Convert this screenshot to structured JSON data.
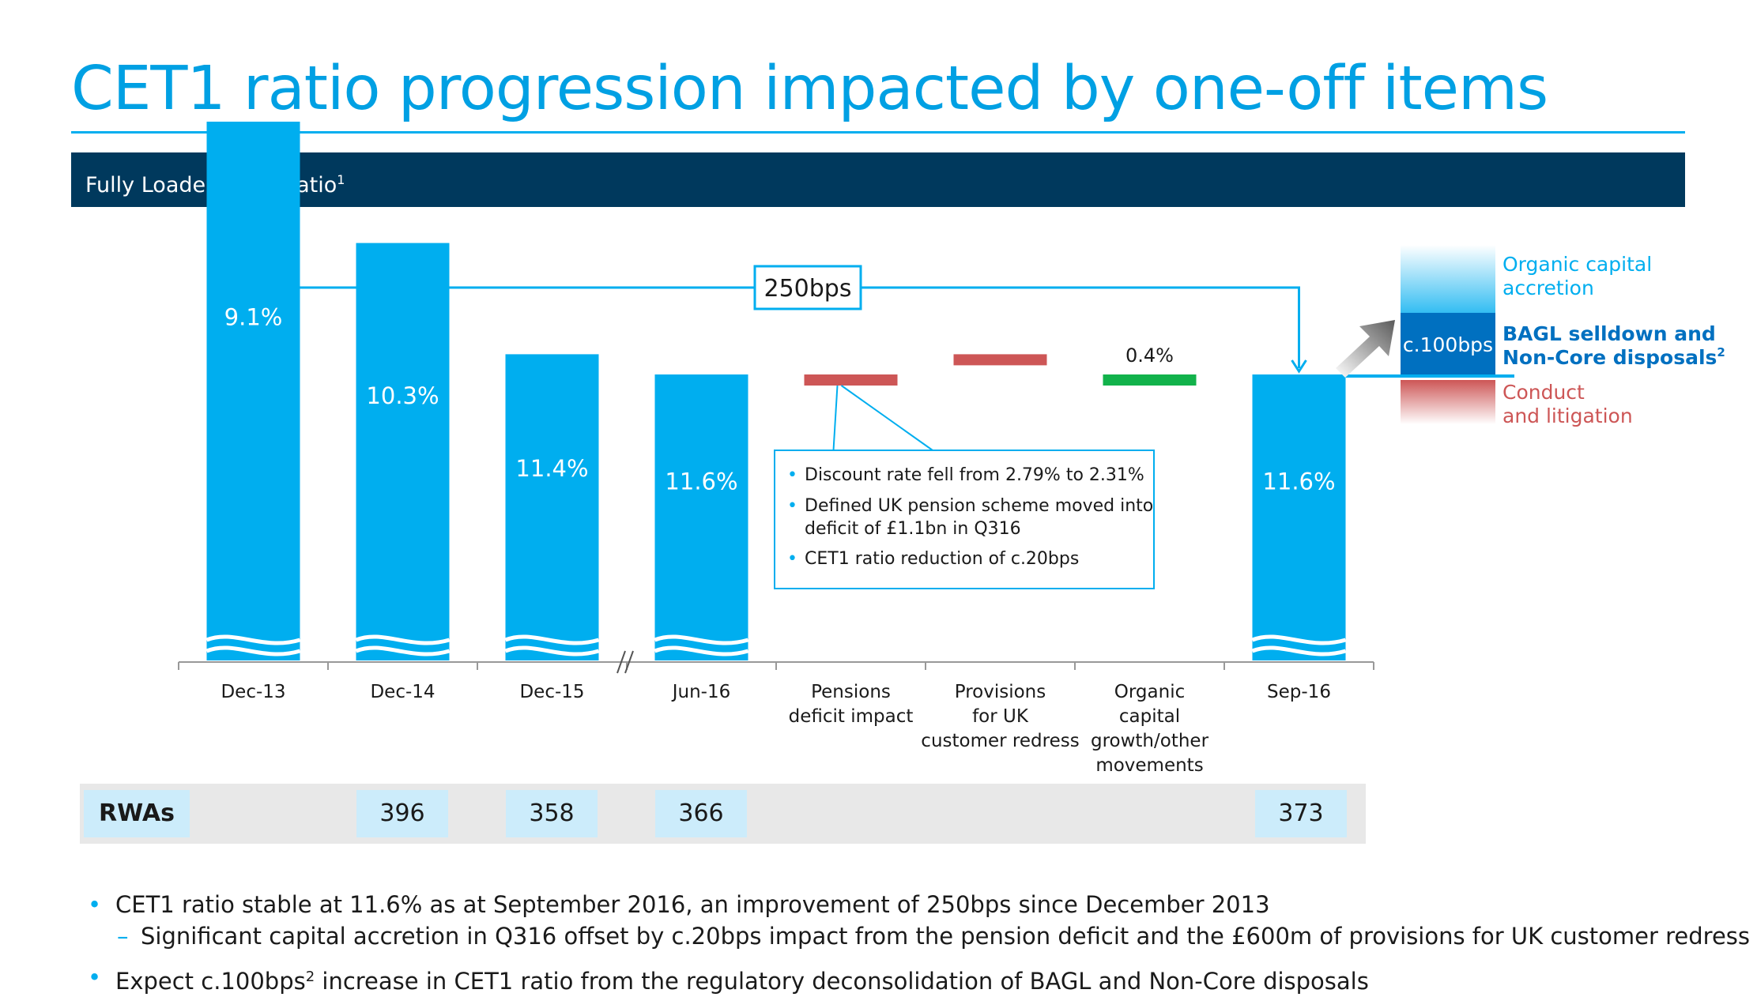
{
  "title": "CET1 ratio progression impacted by one-off items",
  "section_header": {
    "label": "Fully Loaded CET1 ratio",
    "footnote": "1"
  },
  "colors": {
    "title": "#00a0e3",
    "header_bg": "#00395d",
    "bar": "#00aeef",
    "negative": "#cd5656",
    "positive": "#12b24b",
    "dark_blue": "#0070c0"
  },
  "chart_data": {
    "type": "bar",
    "subtype": "waterfall",
    "categories": [
      "Dec-13",
      "Dec-14",
      "Dec-15",
      "Jun-16",
      "Pensions\ndeficit impact",
      "Provisions\nfor UK\ncustomer redress",
      "Organic\ncapital\ngrowth/other\nmovements",
      "Sep-16"
    ],
    "axis_break_between": [
      "Dec-15",
      "Jun-16"
    ],
    "totals": [
      {
        "category": "Dec-13",
        "value": 9.1,
        "label": "9.1%"
      },
      {
        "category": "Dec-14",
        "value": 10.3,
        "label": "10.3%"
      },
      {
        "category": "Dec-15",
        "value": 11.4,
        "label": "11.4%"
      },
      {
        "category": "Jun-16",
        "value": 11.6,
        "label": "11.6%"
      },
      {
        "category": "Sep-16",
        "value": 11.6,
        "label": "11.6%"
      }
    ],
    "movements": [
      {
        "category": "Pensions\ndeficit impact",
        "value": -0.2,
        "direction": "decrease"
      },
      {
        "category": "Provisions\nfor UK\ncustomer redress",
        "value": -0.2,
        "direction": "decrease"
      },
      {
        "category": "Organic\ncapital\ngrowth/other\nmovements",
        "value": 0.4,
        "label": "0.4%",
        "direction": "increase"
      }
    ],
    "bracket": {
      "from": "Dec-13",
      "to": "Sep-16",
      "label": "250bps"
    },
    "callout": {
      "attached_to": "Pensions\ndeficit impact",
      "lines": [
        "Discount rate fell from 2.79% to 2.31%",
        "Defined UK pension scheme moved into",
        "deficit of £1.1bn in Q316",
        "CET1 ratio reduction of c.20bps"
      ]
    },
    "outlook": {
      "segments": [
        {
          "label": "Organic capital accretion",
          "lines": [
            "Organic capital",
            "accretion"
          ],
          "color": "#00aeef"
        },
        {
          "label": "BAGL selldown and Non-Core disposals",
          "lines": [
            "BAGL selldown and",
            "Non-Core disposals"
          ],
          "footnote": "2",
          "value_label": "c.100bps",
          "color": "#0070c0"
        },
        {
          "label": "Conduct and litigation",
          "lines": [
            "Conduct",
            "and litigation"
          ],
          "color": "#cd5656"
        }
      ]
    }
  },
  "rwa_table": {
    "label": "RWAs",
    "values": [
      {
        "category": "Dec-14",
        "value": "396"
      },
      {
        "category": "Dec-15",
        "value": "358"
      },
      {
        "category": "Jun-16",
        "value": "366"
      },
      {
        "category": "Sep-16",
        "value": "373"
      }
    ]
  },
  "bullets": {
    "b1": "CET1 ratio stable at 11.6% as at September 2016, an improvement of 250bps since December 2013",
    "b1_sub": "Significant capital accretion in Q316 offset by c.20bps impact from the pension deficit and the £600m of provisions for UK customer redress",
    "b2_pre": "Expect c.100bps",
    "b2_sup": "2",
    "b2_post": " increase in CET1 ratio from the regulatory deconsolidation of BAGL and Non-Core disposals",
    "bullet_glyph": "•",
    "dash_glyph": "–"
  }
}
